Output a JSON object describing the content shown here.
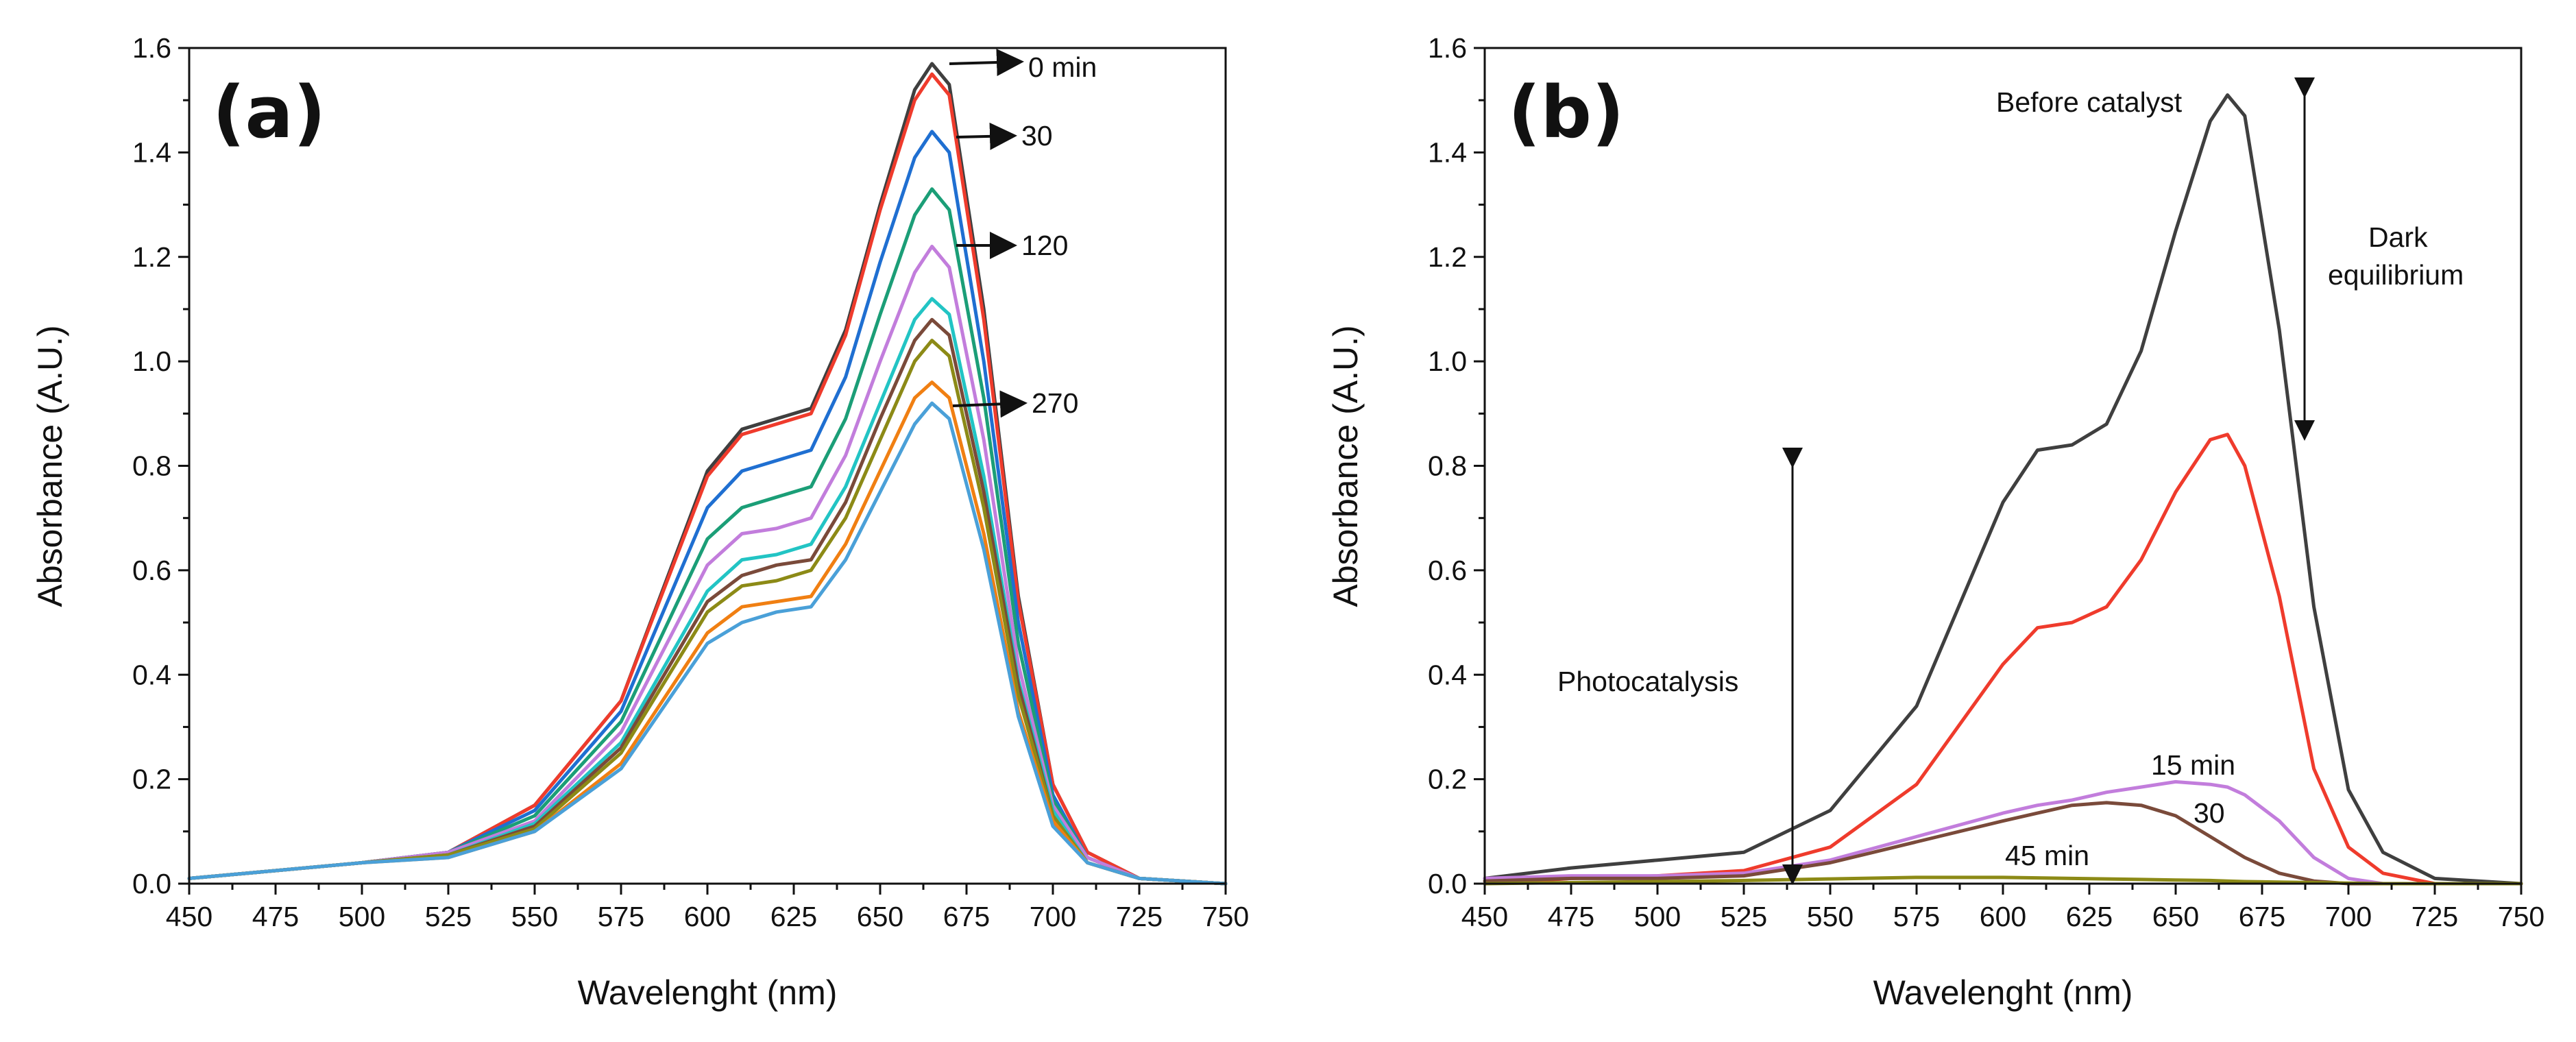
{
  "chart_data": [
    {
      "type": "line",
      "panel_label": "(a)",
      "title": "",
      "xlabel": "Wavelenght (nm)",
      "ylabel": "Absorbance (A.U.)",
      "xlim": [
        450,
        750
      ],
      "ylim": [
        0.0,
        1.6
      ],
      "xticks": [
        "450",
        "475",
        "500",
        "525",
        "550",
        "575",
        "600",
        "625",
        "650",
        "675",
        "700",
        "725",
        "750"
      ],
      "yticks": [
        "0.0",
        "0.2",
        "0.4",
        "0.6",
        "0.8",
        "1.0",
        "1.2",
        "1.4",
        "1.6"
      ],
      "grid": false,
      "x": [
        450,
        475,
        500,
        525,
        550,
        575,
        600,
        610,
        620,
        630,
        640,
        650,
        660,
        665,
        670,
        680,
        690,
        700,
        710,
        725,
        750
      ],
      "series": [
        {
          "name": "0 min",
          "color": "#3f3f3f",
          "values": [
            0.01,
            0.025,
            0.04,
            0.06,
            0.15,
            0.35,
            0.79,
            0.87,
            0.89,
            0.91,
            1.06,
            1.3,
            1.52,
            1.57,
            1.53,
            1.1,
            0.55,
            0.19,
            0.06,
            0.01,
            0.0
          ]
        },
        {
          "name": "",
          "color": "#ef3b2c",
          "values": [
            0.01,
            0.025,
            0.04,
            0.06,
            0.15,
            0.35,
            0.78,
            0.86,
            0.88,
            0.9,
            1.05,
            1.29,
            1.5,
            1.55,
            1.51,
            1.08,
            0.54,
            0.19,
            0.06,
            0.01,
            0.0
          ]
        },
        {
          "name": "30",
          "color": "#1f6fd1",
          "values": [
            0.01,
            0.025,
            0.04,
            0.06,
            0.14,
            0.33,
            0.72,
            0.79,
            0.81,
            0.83,
            0.97,
            1.19,
            1.39,
            1.44,
            1.4,
            1.0,
            0.5,
            0.17,
            0.05,
            0.01,
            0.0
          ]
        },
        {
          "name": "",
          "color": "#1b9e77",
          "values": [
            0.01,
            0.025,
            0.04,
            0.06,
            0.13,
            0.31,
            0.66,
            0.72,
            0.74,
            0.76,
            0.89,
            1.09,
            1.28,
            1.33,
            1.29,
            0.93,
            0.46,
            0.16,
            0.05,
            0.01,
            0.0
          ]
        },
        {
          "name": "120",
          "color": "#c27ddc",
          "values": [
            0.01,
            0.025,
            0.04,
            0.06,
            0.12,
            0.29,
            0.61,
            0.67,
            0.68,
            0.7,
            0.82,
            1.0,
            1.17,
            1.22,
            1.18,
            0.85,
            0.42,
            0.15,
            0.05,
            0.01,
            0.0
          ]
        },
        {
          "name": "",
          "color": "#22c4c4",
          "values": [
            0.01,
            0.025,
            0.04,
            0.055,
            0.115,
            0.27,
            0.56,
            0.62,
            0.63,
            0.65,
            0.76,
            0.92,
            1.08,
            1.12,
            1.09,
            0.78,
            0.39,
            0.14,
            0.04,
            0.01,
            0.0
          ]
        },
        {
          "name": "",
          "color": "#7a4a3a",
          "values": [
            0.01,
            0.025,
            0.04,
            0.055,
            0.11,
            0.26,
            0.54,
            0.59,
            0.61,
            0.62,
            0.73,
            0.89,
            1.04,
            1.08,
            1.05,
            0.75,
            0.38,
            0.13,
            0.04,
            0.01,
            0.0
          ]
        },
        {
          "name": "",
          "color": "#8c8a16",
          "values": [
            0.01,
            0.025,
            0.04,
            0.055,
            0.105,
            0.25,
            0.52,
            0.57,
            0.58,
            0.6,
            0.7,
            0.85,
            1.0,
            1.04,
            1.01,
            0.72,
            0.36,
            0.13,
            0.04,
            0.01,
            0.0
          ]
        },
        {
          "name": "",
          "color": "#f07f12",
          "values": [
            0.01,
            0.025,
            0.04,
            0.05,
            0.1,
            0.23,
            0.48,
            0.53,
            0.54,
            0.55,
            0.65,
            0.79,
            0.93,
            0.96,
            0.93,
            0.67,
            0.33,
            0.12,
            0.04,
            0.01,
            0.0
          ]
        },
        {
          "name": "270",
          "color": "#4aa0d8",
          "values": [
            0.01,
            0.025,
            0.04,
            0.05,
            0.1,
            0.22,
            0.46,
            0.5,
            0.52,
            0.53,
            0.62,
            0.75,
            0.88,
            0.92,
            0.89,
            0.64,
            0.32,
            0.11,
            0.04,
            0.01,
            0.0
          ]
        }
      ],
      "annotations": [
        {
          "text": "0 min",
          "x": 665,
          "y": 1.57
        },
        {
          "text": "30",
          "x": 668,
          "y": 1.42
        },
        {
          "text": "120",
          "x": 668,
          "y": 1.22
        },
        {
          "text": "270",
          "x": 666,
          "y": 0.92
        }
      ]
    },
    {
      "type": "line",
      "panel_label": "(b)",
      "title": "",
      "xlabel": "Wavelenght (nm)",
      "ylabel": "Absorbance (A.U.)",
      "xlim": [
        450,
        750
      ],
      "ylim": [
        0.0,
        1.6
      ],
      "xticks": [
        "450",
        "475",
        "500",
        "525",
        "550",
        "575",
        "600",
        "625",
        "650",
        "675",
        "700",
        "725",
        "750"
      ],
      "yticks": [
        "0.0",
        "0.2",
        "0.4",
        "0.6",
        "0.8",
        "1.0",
        "1.2",
        "1.4",
        "1.6"
      ],
      "grid": false,
      "x": [
        450,
        475,
        500,
        525,
        550,
        575,
        600,
        610,
        620,
        630,
        640,
        650,
        660,
        665,
        670,
        680,
        690,
        700,
        710,
        725,
        750
      ],
      "series": [
        {
          "name": "Before catalyst",
          "color": "#3f3f3f",
          "values": [
            0.01,
            0.03,
            0.045,
            0.06,
            0.14,
            0.34,
            0.73,
            0.83,
            0.84,
            0.88,
            1.02,
            1.25,
            1.46,
            1.51,
            1.47,
            1.06,
            0.53,
            0.18,
            0.06,
            0.01,
            0.0
          ]
        },
        {
          "name": "Dark equilibrium",
          "color": "#ef3b2c",
          "values": [
            0.0,
            0.01,
            0.015,
            0.025,
            0.07,
            0.19,
            0.42,
            0.49,
            0.5,
            0.53,
            0.62,
            0.75,
            0.85,
            0.86,
            0.8,
            0.55,
            0.22,
            0.07,
            0.02,
            0.0,
            0.0
          ]
        },
        {
          "name": "15 min",
          "color": "#c27ddc",
          "values": [
            0.01,
            0.015,
            0.015,
            0.02,
            0.045,
            0.09,
            0.135,
            0.15,
            0.16,
            0.175,
            0.185,
            0.195,
            0.19,
            0.185,
            0.17,
            0.12,
            0.05,
            0.01,
            0.0,
            0.0,
            0.0
          ]
        },
        {
          "name": "30",
          "color": "#7a4a3a",
          "values": [
            0.005,
            0.01,
            0.01,
            0.015,
            0.04,
            0.08,
            0.12,
            0.135,
            0.15,
            0.155,
            0.15,
            0.13,
            0.09,
            0.07,
            0.05,
            0.02,
            0.005,
            0.0,
            0.0,
            0.0,
            0.0
          ]
        },
        {
          "name": "45 min",
          "color": "#8c8a16",
          "values": [
            0.0,
            0.002,
            0.004,
            0.006,
            0.009,
            0.012,
            0.012,
            0.011,
            0.01,
            0.009,
            0.008,
            0.007,
            0.006,
            0.005,
            0.004,
            0.003,
            0.002,
            0.001,
            0.0,
            0.0,
            0.0
          ]
        }
      ],
      "annotations": [
        {
          "text": "Before catalyst"
        },
        {
          "text": "Dark"
        },
        {
          "text": "equilibrium"
        },
        {
          "text": "Photocatalysis"
        },
        {
          "text": "15 min"
        },
        {
          "text": "30"
        },
        {
          "text": "45 min"
        }
      ]
    }
  ]
}
